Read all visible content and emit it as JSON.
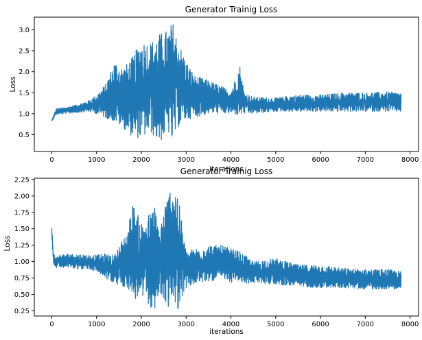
{
  "colors": {
    "series": "#1f77b4",
    "axes": "#000000",
    "background": "#ffffff"
  },
  "chart_data": [
    {
      "type": "line",
      "title": "Generator Trainig Loss",
      "xlabel": "iterations",
      "ylabel": "Loss",
      "xlim": [
        -390,
        8190
      ],
      "ylim": [
        0.1,
        3.3
      ],
      "xticks": [
        0,
        1000,
        2000,
        3000,
        4000,
        5000,
        6000,
        7000,
        8000
      ],
      "yticks": [
        "0.5",
        "1.0",
        "1.5",
        "2.0",
        "2.5",
        "3.0"
      ],
      "grid": false,
      "legend": "none",
      "series": [
        {
          "x": [
            0,
            100,
            300,
            500,
            800,
            1000,
            1200,
            1400,
            1600,
            1800,
            2000,
            2200,
            2400,
            2600,
            2700,
            2800,
            3000,
            3200,
            3500,
            3800,
            4000,
            4200,
            4300,
            4500,
            5000,
            5500,
            6000,
            6500,
            7000,
            7500,
            7800
          ],
          "upper": [
            0.85,
            1.12,
            1.15,
            1.2,
            1.3,
            1.45,
            1.7,
            2.25,
            2.1,
            2.35,
            2.75,
            2.7,
            2.9,
            3.0,
            3.2,
            2.8,
            2.25,
            1.9,
            1.8,
            1.65,
            1.55,
            2.15,
            1.5,
            1.4,
            1.38,
            1.45,
            1.45,
            1.5,
            1.5,
            1.52,
            1.5
          ],
          "lower": [
            0.82,
            0.98,
            1.0,
            1.02,
            1.05,
            1.0,
            0.9,
            0.8,
            0.65,
            0.45,
            0.4,
            0.55,
            0.3,
            0.55,
            0.24,
            0.65,
            0.85,
            0.9,
            1.0,
            1.0,
            1.0,
            0.95,
            1.0,
            1.0,
            1.05,
            1.05,
            1.05,
            1.05,
            1.05,
            1.05,
            1.05
          ]
        }
      ]
    },
    {
      "type": "line",
      "title": "Generator Trainig Loss",
      "xlabel": "iterations",
      "ylabel": "Loss",
      "xlim": [
        -390,
        8190
      ],
      "ylim": [
        0.17,
        2.27
      ],
      "xticks": [
        0,
        1000,
        2000,
        3000,
        4000,
        5000,
        6000,
        7000,
        8000
      ],
      "yticks": [
        "0.25",
        "0.50",
        "0.75",
        "1.00",
        "1.25",
        "1.50",
        "1.75",
        "2.00",
        "2.25"
      ],
      "grid": false,
      "legend": "none",
      "series": [
        {
          "x": [
            0,
            30,
            80,
            150,
            400,
            800,
            1000,
            1200,
            1400,
            1700,
            1800,
            2000,
            2200,
            2300,
            2400,
            2600,
            2700,
            2800,
            3000,
            3200,
            3500,
            3800,
            4000,
            4200,
            4300,
            4500,
            5000,
            5500,
            6000,
            6500,
            7000,
            7500,
            7800
          ],
          "upper": [
            1.55,
            1.2,
            1.05,
            1.1,
            1.12,
            1.1,
            1.1,
            1.12,
            1.1,
            1.5,
            1.9,
            1.6,
            1.75,
            1.85,
            1.5,
            2.05,
            2.2,
            2.1,
            1.15,
            1.2,
            1.25,
            1.25,
            1.2,
            1.15,
            1.1,
            1.0,
            1.05,
            0.95,
            0.95,
            0.9,
            0.88,
            0.88,
            0.85
          ],
          "lower": [
            1.4,
            1.0,
            0.9,
            0.92,
            0.9,
            0.88,
            0.85,
            0.75,
            0.65,
            0.6,
            0.4,
            0.45,
            0.3,
            0.25,
            0.5,
            0.3,
            0.35,
            0.25,
            0.6,
            0.65,
            0.7,
            0.72,
            0.68,
            0.7,
            0.65,
            0.68,
            0.65,
            0.62,
            0.6,
            0.6,
            0.58,
            0.58,
            0.58
          ]
        }
      ]
    }
  ]
}
